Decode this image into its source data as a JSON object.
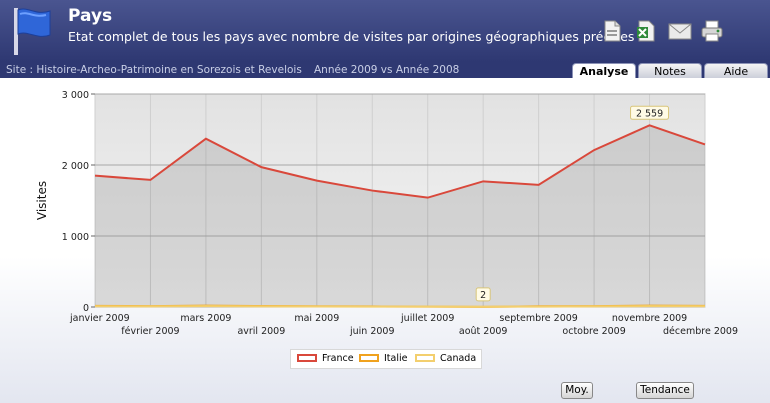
{
  "header": {
    "title": "Pays",
    "subtitle": "Etat complet de tous les pays avec nombre de visites par origines géographiques précises"
  },
  "subbar": {
    "site": "Site : Histoire-Archeo-Patrimoine en Sorezois et Revelois",
    "years": "Année 2009 vs Année 2008"
  },
  "tabs": [
    {
      "label": "Analyse",
      "active": true
    },
    {
      "label": "Notes",
      "active": false
    },
    {
      "label": "Aide",
      "active": false
    }
  ],
  "toolbar_icons": [
    "pdf-export-icon",
    "excel-export-icon",
    "email-icon",
    "print-icon"
  ],
  "chart_data": {
    "type": "area",
    "ylabel": "Visites",
    "ylim": [
      0,
      3000
    ],
    "yticks": [
      "0",
      "1 000",
      "2 000",
      "3 000"
    ],
    "categories": [
      "janvier 2009",
      "février 2009",
      "mars 2009",
      "avril 2009",
      "mai 2009",
      "juin 2009",
      "juillet 2009",
      "août 2009",
      "septembre 2009",
      "octobre 2009",
      "novembre 2009",
      "décembre 2009"
    ],
    "series": [
      {
        "name": "France",
        "color": "#d9483b",
        "values": [
          1850,
          1790,
          2370,
          1970,
          1780,
          1640,
          1540,
          1770,
          1720,
          2210,
          2559,
          2290
        ]
      },
      {
        "name": "Italie",
        "color": "#f0a21e",
        "values": [
          15,
          12,
          20,
          14,
          10,
          8,
          6,
          2,
          10,
          12,
          20,
          15
        ]
      },
      {
        "name": "Canada",
        "color": "#f3cf6e",
        "values": [
          10,
          8,
          12,
          9,
          7,
          6,
          5,
          4,
          6,
          8,
          12,
          10
        ]
      }
    ],
    "annotations": [
      {
        "label": "2 559",
        "series": "France",
        "index": 10
      },
      {
        "label": "2",
        "series": "Italie",
        "index": 7
      }
    ],
    "grid": true,
    "legend_position": "bottom"
  },
  "buttons": {
    "moy": "Moy.",
    "tendance": "Tendance"
  }
}
